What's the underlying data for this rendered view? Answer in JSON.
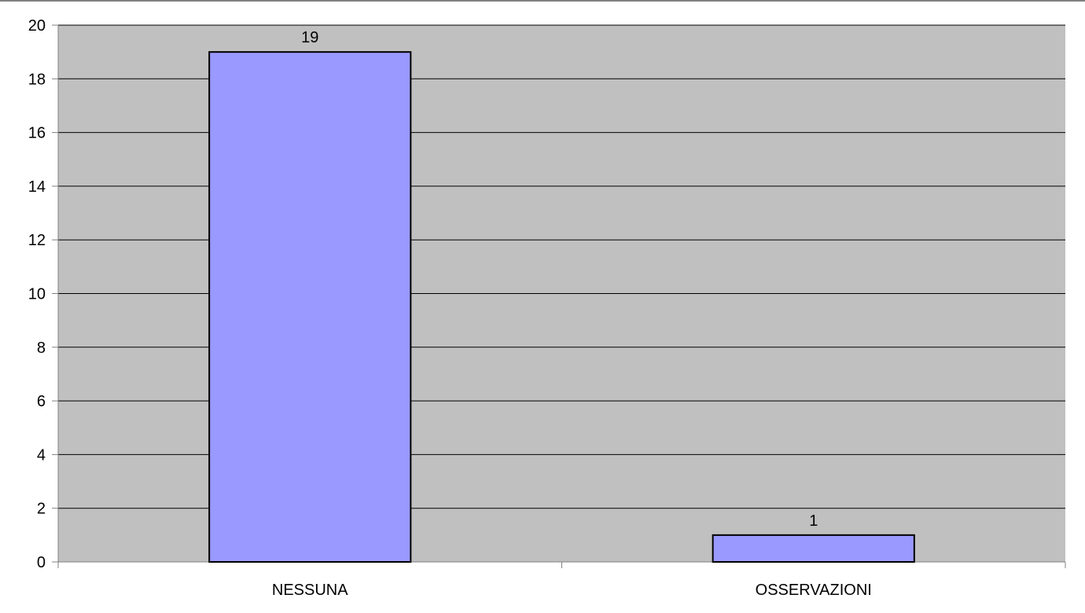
{
  "chart_data": {
    "type": "bar",
    "title": "",
    "xlabel": "",
    "ylabel": "",
    "categories": [
      "NESSUNA",
      "OSSERVAZIONI"
    ],
    "values": [
      19,
      1
    ],
    "data_labels": [
      "19",
      "1"
    ],
    "ylim": [
      0,
      20
    ],
    "yticks": [
      0,
      2,
      4,
      6,
      8,
      10,
      12,
      14,
      16,
      18,
      20
    ],
    "ytick_labels": [
      "0",
      "2",
      "4",
      "6",
      "8",
      "10",
      "12",
      "14",
      "16",
      "18",
      "20"
    ],
    "grid": true,
    "legend": "none",
    "colors": {
      "bar_fill": "#9999ff",
      "bar_stroke": "#000000",
      "plot_background": "#c0c0c0",
      "grid": "#000000",
      "axis": "#808080"
    }
  }
}
